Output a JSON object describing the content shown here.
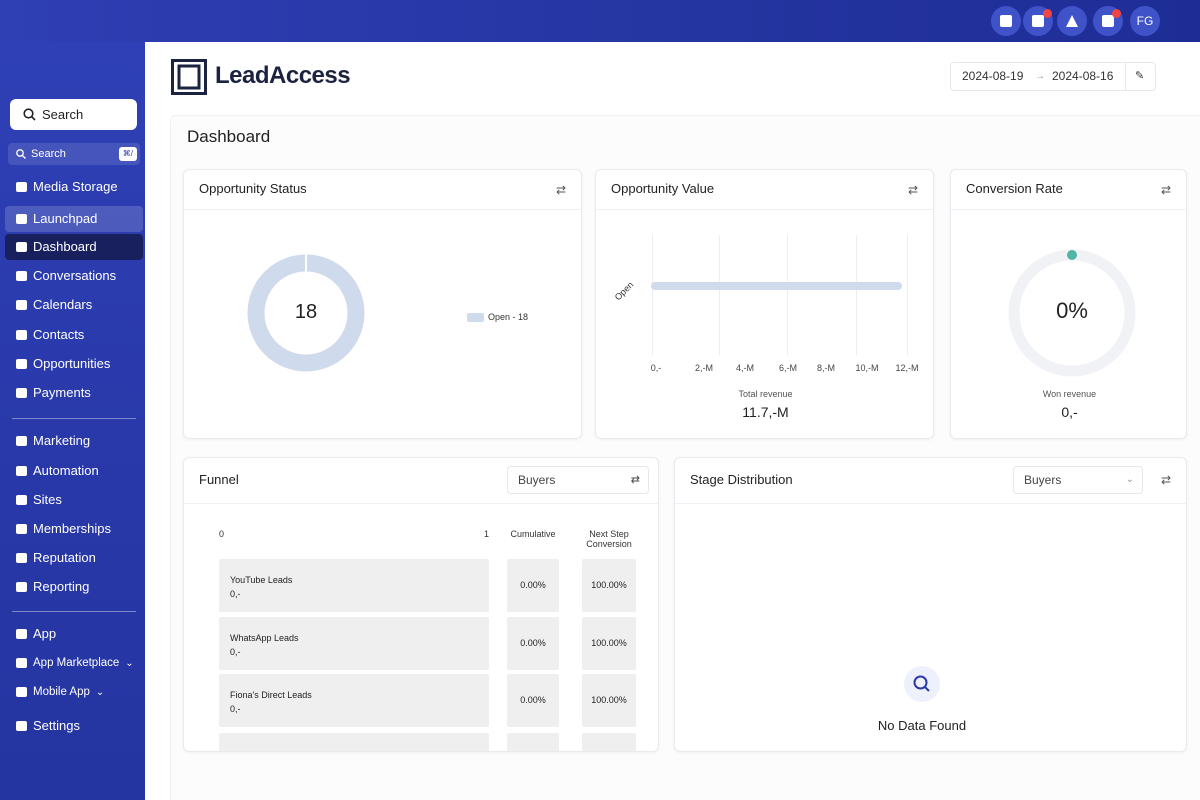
{
  "topbar": {
    "avatar": "FG"
  },
  "sidebar": {
    "search": "Search",
    "quick_search": "Search",
    "shortcut": "⌘/",
    "items": [
      "Media Storage",
      "Launchpad",
      "Dashboard",
      "Conversations",
      "Calendars",
      "Contacts",
      "Opportunities",
      "Payments",
      "Marketing",
      "Automation",
      "Sites",
      "Memberships",
      "Reputation",
      "Reporting",
      "App",
      "App Marketplace",
      "Mobile App",
      "Settings"
    ]
  },
  "header": {
    "logo": "LeadAccess",
    "date_start": "2024-08-19",
    "date_end": "2024-08-16"
  },
  "page_title": "Dashboard",
  "opportunity_status": {
    "title": "Opportunity Status",
    "total": "18",
    "legend": "Open - 18"
  },
  "opportunity_value": {
    "title": "Opportunity Value",
    "category": "Open",
    "x_labels": [
      "0,-",
      "2,-M",
      "4,-M",
      "6,-M",
      "8,-M",
      "10,-M",
      "12,-M"
    ],
    "caption": "Total revenue",
    "total": "11.7,-M"
  },
  "conversion_rate": {
    "title": "Conversion Rate",
    "value": "0%",
    "caption": "Won revenue",
    "won": "0,-"
  },
  "funnel": {
    "title": "Funnel",
    "filter": "Buyers",
    "axis_start": "0",
    "axis_end": "1",
    "headers": [
      "Cumulative",
      "Next Step Conversion"
    ],
    "rows": [
      {
        "name": "YouTube Leads",
        "value": "0,-",
        "cumulative": "0.00%",
        "next_step": "100.00%"
      },
      {
        "name": "WhatsApp Leads",
        "value": "0,-",
        "cumulative": "0.00%",
        "next_step": "100.00%"
      },
      {
        "name": "Fiona's Direct Leads",
        "value": "0,-",
        "cumulative": "0.00%",
        "next_step": "100.00%"
      }
    ]
  },
  "stage_distribution": {
    "title": "Stage Distribution",
    "filter": "Buyers",
    "empty": "No Data Found"
  }
}
